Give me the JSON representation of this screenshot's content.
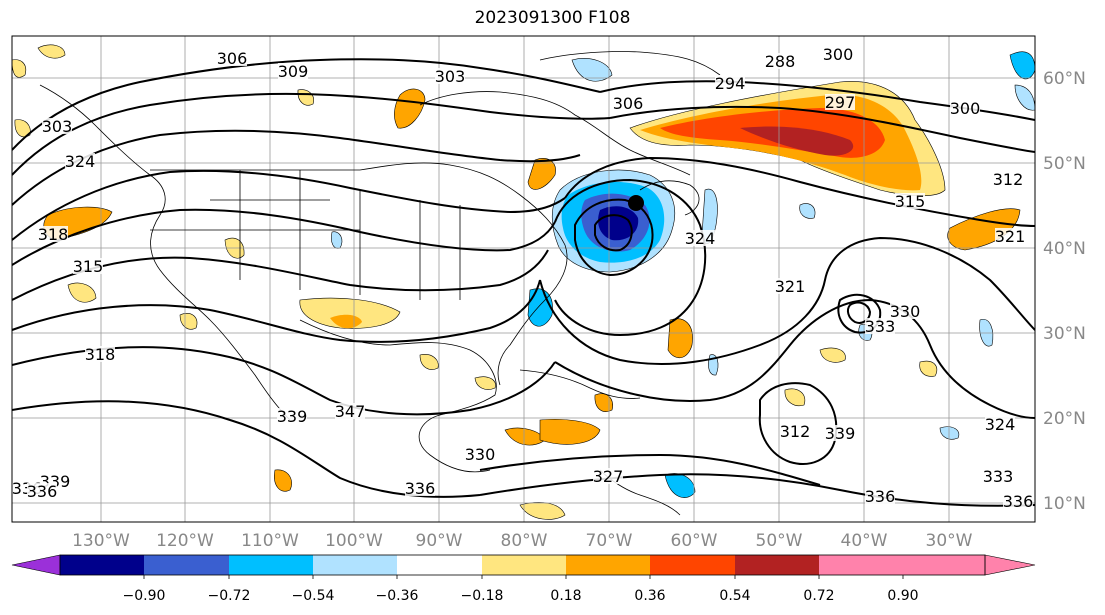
{
  "title": "2023091300 F108",
  "map": {
    "lon_labels": [
      "130°W",
      "120°W",
      "110°W",
      "100°W",
      "90°W",
      "80°W",
      "70°W",
      "60°W",
      "50°W",
      "40°W",
      "30°W"
    ],
    "lat_labels": [
      "60°N",
      "50°N",
      "40°N",
      "30°N",
      "20°N",
      "10°N"
    ],
    "contour_labels": [
      "306",
      "309",
      "303",
      "303",
      "324",
      "318",
      "315",
      "318",
      "339",
      "347",
      "336",
      "339",
      "336",
      "330",
      "327",
      "300",
      "294",
      "288",
      "306",
      "297",
      "300",
      "315",
      "312",
      "321",
      "330",
      "333",
      "324",
      "321",
      "312",
      "339",
      "336",
      "336",
      "333",
      "336",
      "324"
    ],
    "colors": {
      "contour": "#000000",
      "grid": "#999999",
      "coast": "#000000"
    }
  },
  "colorbar": {
    "ticks": [
      "−0.90",
      "−0.72",
      "−0.54",
      "−0.36",
      "−0.18",
      "0.18",
      "0.36",
      "0.54",
      "0.72",
      "0.90"
    ],
    "colors": [
      "#9b30d9",
      "#00008b",
      "#3a5fd0",
      "#00bfff",
      "#b0e2ff",
      "#ffffff",
      "#ffe680",
      "#ffa500",
      "#ff4500",
      "#b22222",
      "#ff82ab"
    ]
  }
}
